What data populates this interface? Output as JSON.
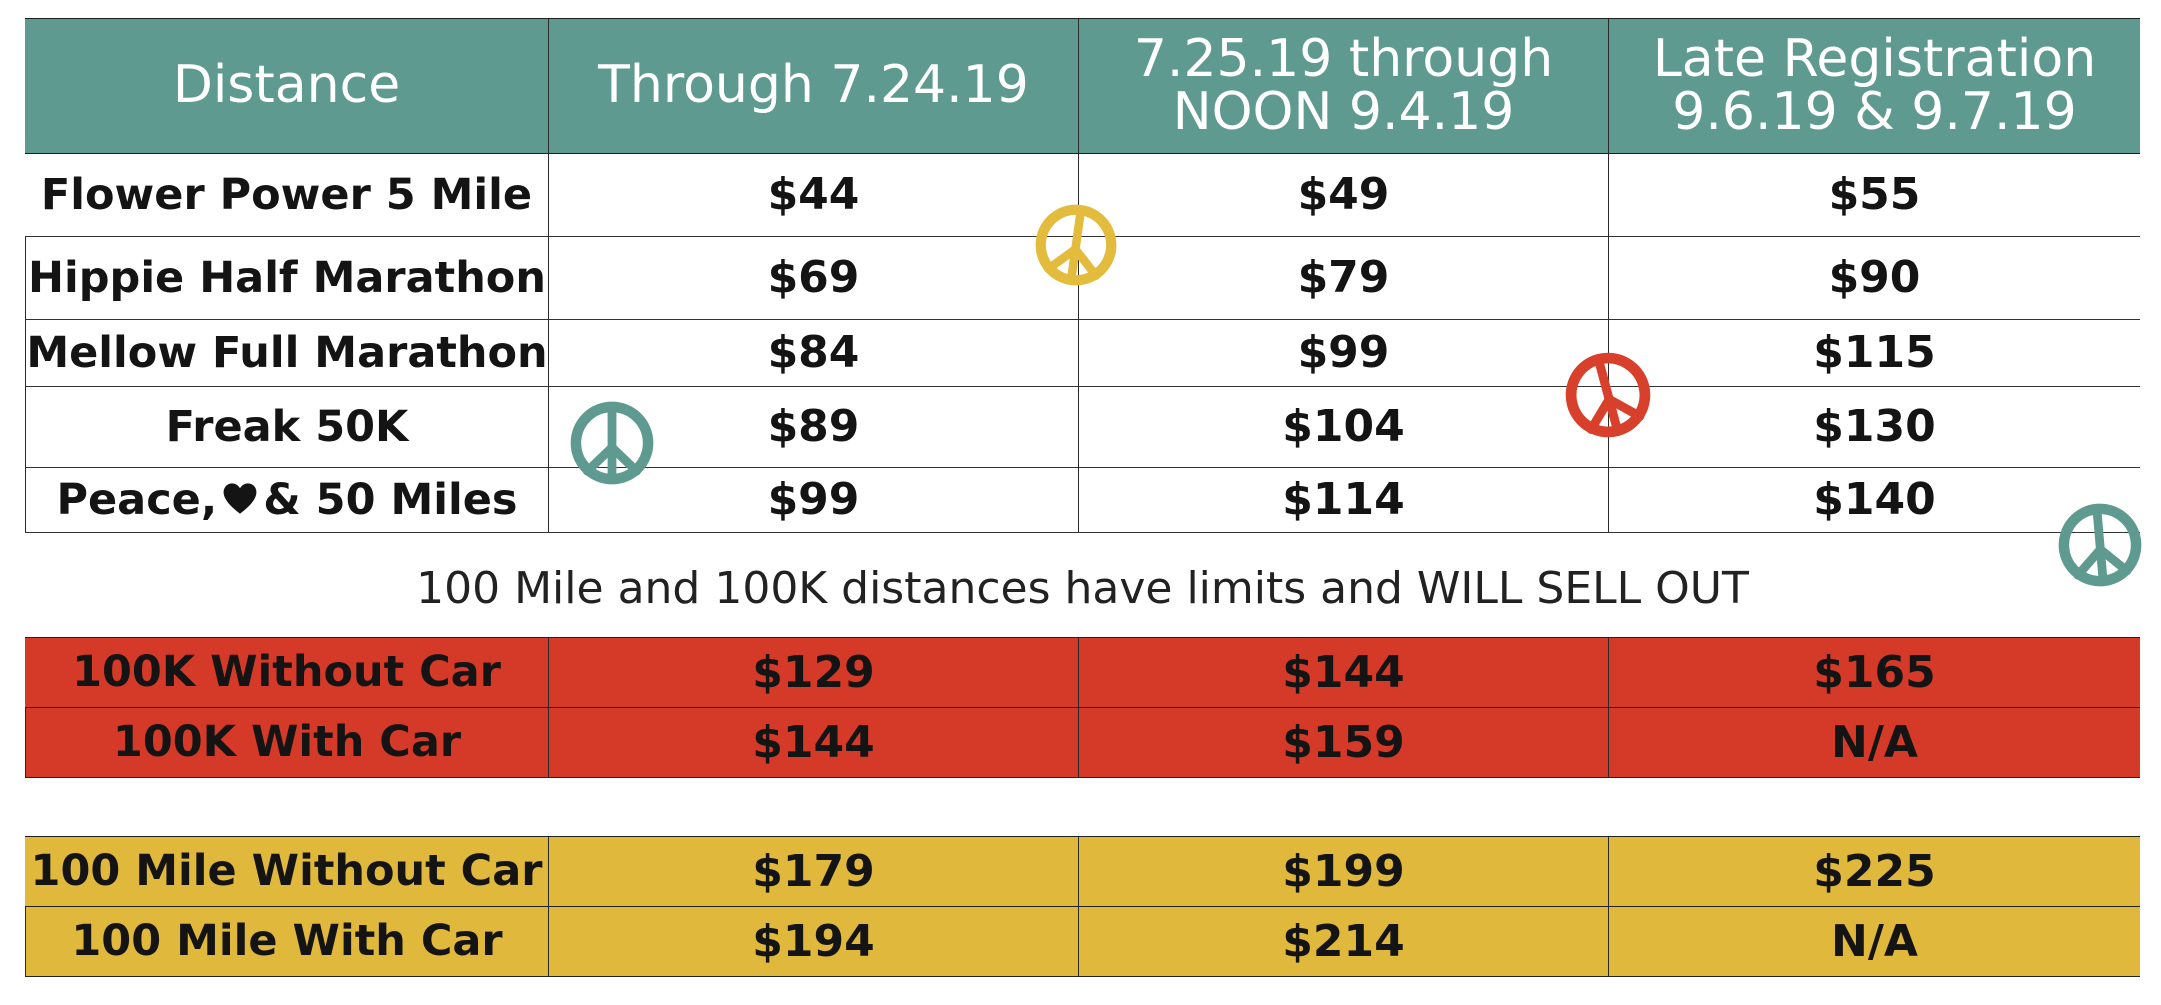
{
  "header": {
    "distance": "Distance",
    "col1": "Through 7.24.19",
    "col2": "7.25.19 through NOON 9.4.19",
    "col3": "Late Registration 9.6.19 & 9.7.19"
  },
  "standard_rows": [
    {
      "name": "Flower Power 5 Mile",
      "p1": "$44",
      "p2": "$49",
      "p3": "$55"
    },
    {
      "name": "Hippie Half Marathon",
      "p1": "$69",
      "p2": "$79",
      "p3": "$90"
    },
    {
      "name": "Mellow Full Marathon",
      "p1": "$84",
      "p2": "$99",
      "p3": "$115"
    },
    {
      "name": "Freak 50K",
      "p1": "$89",
      "p2": "$104",
      "p3": "$130"
    },
    {
      "name_before": "Peace,",
      "name_after": "& 50 Miles",
      "p1": "$99",
      "p2": "$114",
      "p3": "$140"
    }
  ],
  "note": "100 Mile and 100K distances have limits and WILL SELL OUT",
  "k100_rows": [
    {
      "name": "100K Without Car",
      "p1": "$129",
      "p2": "$144",
      "p3": "$165"
    },
    {
      "name": "100K With Car",
      "p1": "$144",
      "p2": "$159",
      "p3": "N/A"
    }
  ],
  "m100_rows": [
    {
      "name": "100 Mile Without Car",
      "p1": "$179",
      "p2": "$199",
      "p3": "$225"
    },
    {
      "name": "100 Mile With Car",
      "p1": "$194",
      "p2": "$214",
      "p3": "N/A"
    }
  ],
  "colors": {
    "header_teal": "#5f9a90",
    "red_band": "#d53a28",
    "gold_band": "#e0b93c",
    "peace_teal": "#5f9a90",
    "peace_gold": "#e3bc3e",
    "peace_red": "#d9402c"
  },
  "icons": [
    "peace-sign-icon",
    "heart-icon"
  ]
}
